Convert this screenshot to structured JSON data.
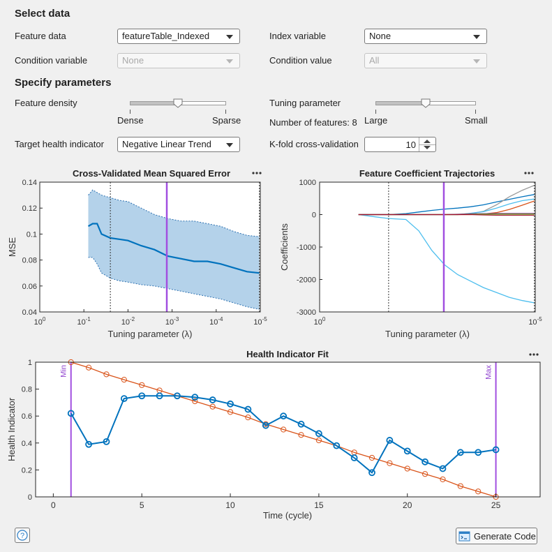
{
  "select_data": {
    "title": "Select data",
    "feature_data_label": "Feature data",
    "feature_data_value": "featureTable_Indexed",
    "index_variable_label": "Index variable",
    "index_variable_value": "None",
    "condition_variable_label": "Condition variable",
    "condition_variable_value": "None",
    "condition_value_label": "Condition value",
    "condition_value_value": "All"
  },
  "specify_parameters": {
    "title": "Specify parameters",
    "feature_density_label": "Feature density",
    "feature_density_min": "Dense",
    "feature_density_max": "Sparse",
    "feature_density_level": 0.5,
    "tuning_parameter_label": "Tuning parameter",
    "tuning_parameter_min": "Large",
    "tuning_parameter_max": "Small",
    "tuning_parameter_level": 0.5,
    "num_features_text": "Number of features: 8",
    "target_hi_label": "Target health indicator",
    "target_hi_value": "Negative Linear Trend",
    "kfold_label": "K-fold cross-validation",
    "kfold_value": "10"
  },
  "footer": {
    "generate_code_label": "Generate Code",
    "help_symbol": "?"
  },
  "colors": {
    "blue": "#0072bd",
    "orange": "#d95319",
    "purple": "#a14fe0",
    "band": "#b4d2ea"
  },
  "chart_data": [
    {
      "type": "area",
      "title": "Cross-Validated Mean Squared Error",
      "xlabel": "Tuning parameter (λ)",
      "ylabel": "MSE",
      "xscale": "log-reversed",
      "x_tick_exponents": [
        "0",
        "-1",
        "-2",
        "-3",
        "-4",
        "-5"
      ],
      "ylim": [
        0.04,
        0.14
      ],
      "yticks": [
        "0.04",
        "0.06",
        "0.08",
        "0.1",
        "0.12",
        "0.14"
      ],
      "lambda_log10": [
        -1.1,
        -1.2,
        -1.3,
        -1.4,
        -1.6,
        -1.8,
        -2.0,
        -2.3,
        -2.6,
        -2.9,
        -3.2,
        -3.5,
        -3.8,
        -4.1,
        -4.4,
        -4.7,
        -4.98
      ],
      "mean": [
        0.106,
        0.108,
        0.108,
        0.1,
        0.097,
        0.096,
        0.095,
        0.091,
        0.088,
        0.083,
        0.081,
        0.079,
        0.079,
        0.077,
        0.074,
        0.071,
        0.07
      ],
      "upper": [
        0.13,
        0.134,
        0.132,
        0.13,
        0.128,
        0.126,
        0.125,
        0.12,
        0.115,
        0.112,
        0.11,
        0.11,
        0.108,
        0.106,
        0.102,
        0.099,
        0.098
      ],
      "lower": [
        0.082,
        0.082,
        0.077,
        0.07,
        0.066,
        0.064,
        0.063,
        0.061,
        0.06,
        0.058,
        0.056,
        0.054,
        0.052,
        0.05,
        0.047,
        0.044,
        0.042
      ],
      "dotted_lines_log10": [
        -1.6,
        -4.98
      ],
      "selected_log10": -2.88
    },
    {
      "type": "line",
      "title": "Feature Coefficient Trajectories",
      "xlabel": "Tuning parameter (λ)",
      "ylabel": "Coefficients",
      "xscale": "log-reversed",
      "x_tick_exponents": [
        "0",
        "-5"
      ],
      "ylim": [
        -3000,
        1000
      ],
      "yticks": [
        "-3000",
        "-2000",
        "-1000",
        "0",
        "1000"
      ],
      "lambda_log10": [
        -0.9,
        -1.3,
        -1.6,
        -2.0,
        -2.3,
        -2.6,
        -2.9,
        -3.2,
        -3.5,
        -3.8,
        -4.1,
        -4.4,
        -4.7,
        -4.98
      ],
      "series": [
        {
          "color": "#4dbeee",
          "values": [
            0,
            -70,
            -120,
            -150,
            -500,
            -1100,
            -1550,
            -1850,
            -2050,
            -2250,
            -2400,
            -2550,
            -2650,
            -2720
          ]
        },
        {
          "color": "#0072bd",
          "values": [
            0,
            0,
            0,
            30,
            80,
            130,
            170,
            200,
            240,
            300,
            390,
            470,
            550,
            620
          ]
        },
        {
          "color": "#999999",
          "values": [
            0,
            0,
            0,
            0,
            0,
            0,
            0,
            0,
            30,
            100,
            300,
            550,
            750,
            900
          ]
        },
        {
          "color": "#4dbeee",
          "values": [
            0,
            0,
            0,
            0,
            0,
            0,
            0,
            0,
            40,
            90,
            200,
            330,
            430,
            480
          ]
        },
        {
          "color": "#d95319",
          "values": [
            0,
            0,
            0,
            0,
            0,
            0,
            0,
            0,
            0,
            20,
            60,
            160,
            290,
            420
          ]
        },
        {
          "color": "#7e2f8e",
          "values": [
            0,
            0,
            0,
            0,
            0,
            0,
            0,
            10,
            25,
            30,
            35,
            35,
            35,
            35
          ]
        },
        {
          "color": "#77ac30",
          "values": [
            0,
            0,
            0,
            0,
            0,
            0,
            0,
            0,
            10,
            15,
            15,
            15,
            15,
            15
          ]
        },
        {
          "color": "#a2142f",
          "values": [
            0,
            0,
            0,
            0,
            0,
            0,
            0,
            0,
            0,
            -10,
            -20,
            -20,
            -20,
            -20
          ]
        }
      ],
      "dotted_lines_log10": [
        -1.6,
        -4.98
      ],
      "selected_log10": -2.88
    },
    {
      "type": "line",
      "title": "Health Indicator Fit",
      "xlabel": "Time (cycle)",
      "ylabel": "Health Indicator",
      "xlim": [
        -1,
        27.5
      ],
      "xticks": [
        "0",
        "5",
        "10",
        "15",
        "20",
        "25"
      ],
      "ylim": [
        0,
        1
      ],
      "yticks": [
        "0",
        "0.2",
        "0.4",
        "0.6",
        "0.8",
        "1"
      ],
      "x": [
        1,
        2,
        3,
        4,
        5,
        6,
        7,
        8,
        9,
        10,
        11,
        12,
        13,
        14,
        15,
        16,
        17,
        18,
        19,
        20,
        21,
        22,
        23,
        24,
        25
      ],
      "series": [
        {
          "color": "#0072bd",
          "values": [
            0.62,
            0.39,
            0.41,
            0.73,
            0.75,
            0.75,
            0.75,
            0.74,
            0.72,
            0.69,
            0.65,
            0.53,
            0.6,
            0.54,
            0.47,
            0.38,
            0.29,
            0.18,
            0.42,
            0.34,
            0.26,
            0.21,
            0.33,
            0.33,
            0.35
          ]
        },
        {
          "color": "#d95319",
          "values": [
            1.0,
            0.96,
            0.91,
            0.87,
            0.83,
            0.79,
            0.75,
            0.71,
            0.67,
            0.63,
            0.59,
            0.54,
            0.5,
            0.46,
            0.42,
            0.38,
            0.33,
            0.29,
            0.25,
            0.21,
            0.17,
            0.13,
            0.08,
            0.04,
            0.0
          ]
        }
      ],
      "markers": [
        {
          "label": "Min",
          "x": 1
        },
        {
          "label": "Max",
          "x": 25
        }
      ]
    }
  ]
}
